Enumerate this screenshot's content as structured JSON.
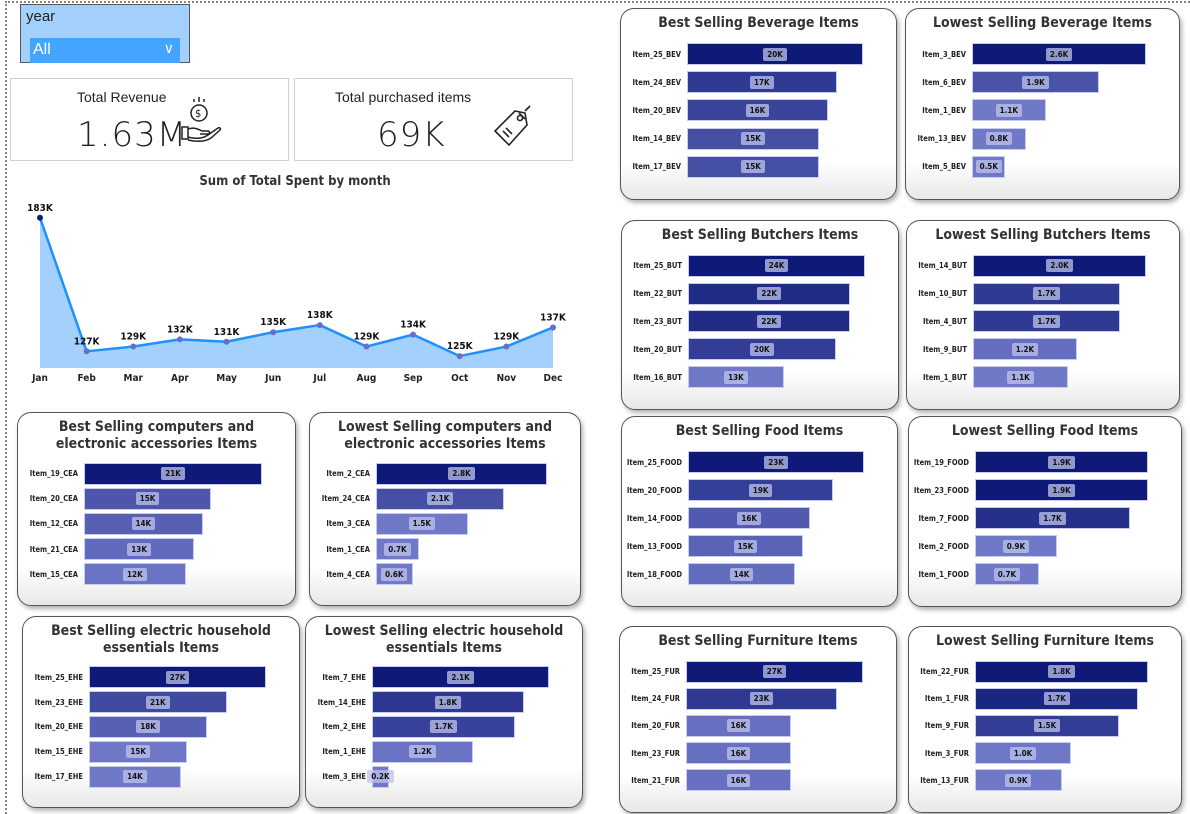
{
  "slicer": {
    "label": "year",
    "value": "All"
  },
  "kpis": {
    "revenue": {
      "title": "Total Revenue",
      "value": "1.63M",
      "icon": "money-hand-icon"
    },
    "items": {
      "title": "Total purchased items",
      "value": "69K",
      "icon": "price-tag-icon"
    }
  },
  "colors": {
    "line": "#1e90ff",
    "area": "#a3d0fd",
    "bar_dark": "#0f1a78",
    "bar_light": "#7079c8",
    "slicer": "#a3d0fd",
    "dropdown": "#42a5ff"
  },
  "chart_data": [
    {
      "type": "line",
      "title": "Sum of Total Spent by month",
      "categories": [
        "Jan",
        "Feb",
        "Mar",
        "Apr",
        "May",
        "Jun",
        "Jul",
        "Aug",
        "Sep",
        "Oct",
        "Nov",
        "Dec"
      ],
      "values": [
        183000,
        127000,
        129000,
        132000,
        131000,
        135000,
        138000,
        129000,
        134000,
        125000,
        129000,
        137000
      ],
      "data_labels": [
        "183K",
        "127K",
        "129K",
        "132K",
        "131K",
        "135K",
        "138K",
        "129K",
        "134K",
        "125K",
        "129K",
        "137K"
      ],
      "ylim": [
        120000,
        185000
      ],
      "area": true,
      "grid": false
    },
    {
      "type": "bar",
      "title": "Best Selling Beverage Items",
      "categories": [
        "Item_25_BEV",
        "Item_24_BEV",
        "Item_20_BEV",
        "Item_14_BEV",
        "Item_17_BEV"
      ],
      "values": [
        20000,
        17000,
        16000,
        15000,
        15000
      ],
      "data_labels": [
        "20K",
        "17K",
        "16K",
        "15K",
        "15K"
      ]
    },
    {
      "type": "bar",
      "title": "Lowest Selling Beverage Items",
      "categories": [
        "Item_3_BEV",
        "Item_6_BEV",
        "Item_1_BEV",
        "Item_13_BEV",
        "Item_5_BEV"
      ],
      "values": [
        2600,
        1900,
        1100,
        800,
        500
      ],
      "data_labels": [
        "2.6K",
        "1.9K",
        "1.1K",
        "0.8K",
        "0.5K"
      ]
    },
    {
      "type": "bar",
      "title": "Best Selling Butchers Items",
      "categories": [
        "Item_25_BUT",
        "Item_22_BUT",
        "Item_23_BUT",
        "Item_20_BUT",
        "Item_16_BUT"
      ],
      "values": [
        24000,
        22000,
        22000,
        20000,
        13000
      ],
      "data_labels": [
        "24K",
        "22K",
        "22K",
        "20K",
        "13K"
      ]
    },
    {
      "type": "bar",
      "title": "Lowest Selling Butchers Items",
      "categories": [
        "Item_14_BUT",
        "Item_10_BUT",
        "Item_4_BUT",
        "Item_9_BUT",
        "Item_1_BUT"
      ],
      "values": [
        2000,
        1700,
        1700,
        1200,
        1100
      ],
      "data_labels": [
        "2.0K",
        "1.7K",
        "1.7K",
        "1.2K",
        "1.1K"
      ]
    },
    {
      "type": "bar",
      "title": "Best Selling Food Items",
      "categories": [
        "Item_25_FOOD",
        "Item_20_FOOD",
        "Item_14_FOOD",
        "Item_13_FOOD",
        "Item_18_FOOD"
      ],
      "values": [
        23000,
        19000,
        16000,
        15000,
        14000
      ],
      "data_labels": [
        "23K",
        "19K",
        "16K",
        "15K",
        "14K"
      ]
    },
    {
      "type": "bar",
      "title": "Lowest Selling Food Items",
      "categories": [
        "Item_19_FOOD",
        "Item_23_FOOD",
        "Item_7_FOOD",
        "Item_2_FOOD",
        "Item_1_FOOD"
      ],
      "values": [
        1900,
        1900,
        1700,
        900,
        700
      ],
      "data_labels": [
        "1.9K",
        "1.9K",
        "1.7K",
        "0.9K",
        "0.7K"
      ]
    },
    {
      "type": "bar",
      "title": "Best Selling Furniture Items",
      "categories": [
        "Item_25_FUR",
        "Item_24_FUR",
        "Item_20_FUR",
        "Item_23_FUR",
        "Item_21_FUR"
      ],
      "values": [
        27000,
        23000,
        16000,
        16000,
        16000
      ],
      "data_labels": [
        "27K",
        "23K",
        "16K",
        "16K",
        "16K"
      ]
    },
    {
      "type": "bar",
      "title": "Lowest Selling Furniture Items",
      "categories": [
        "Item_22_FUR",
        "Item_1_FUR",
        "Item_9_FUR",
        "Item_3_FUR",
        "Item_13_FUR"
      ],
      "values": [
        1800,
        1700,
        1500,
        1000,
        900
      ],
      "data_labels": [
        "1.8K",
        "1.7K",
        "1.5K",
        "1.0K",
        "0.9K"
      ]
    },
    {
      "type": "bar",
      "title": "Best Selling computers and electronic accessories Items",
      "categories": [
        "Item_19_CEA",
        "Item_20_CEA",
        "Item_12_CEA",
        "Item_21_CEA",
        "Item_15_CEA"
      ],
      "values": [
        21000,
        15000,
        14000,
        13000,
        12000
      ],
      "data_labels": [
        "21K",
        "15K",
        "14K",
        "13K",
        "12K"
      ]
    },
    {
      "type": "bar",
      "title": "Lowest Selling computers and electronic accessories Items",
      "categories": [
        "Item_2_CEA",
        "Item_24_CEA",
        "Item_3_CEA",
        "Item_1_CEA",
        "Item_4_CEA"
      ],
      "values": [
        2800,
        2100,
        1500,
        700,
        600
      ],
      "data_labels": [
        "2.8K",
        "2.1K",
        "1.5K",
        "0.7K",
        "0.6K"
      ]
    },
    {
      "type": "bar",
      "title": "Best Selling electric household essentials Items",
      "categories": [
        "Item_25_EHE",
        "Item_23_EHE",
        "Item_20_EHE",
        "Item_15_EHE",
        "Item_17_EHE"
      ],
      "values": [
        27000,
        21000,
        18000,
        15000,
        14000
      ],
      "data_labels": [
        "27K",
        "21K",
        "18K",
        "15K",
        "14K"
      ]
    },
    {
      "type": "bar",
      "title": "Lowest Selling electric household essentials Items",
      "categories": [
        "Item_7_EHE",
        "Item_14_EHE",
        "Item_2_EHE",
        "Item_1_EHE",
        "Item_3_EHE"
      ],
      "values": [
        2100,
        1800,
        1700,
        1200,
        200
      ],
      "data_labels": [
        "2.1K",
        "1.8K",
        "1.7K",
        "1.2K",
        "0.2K"
      ]
    }
  ]
}
